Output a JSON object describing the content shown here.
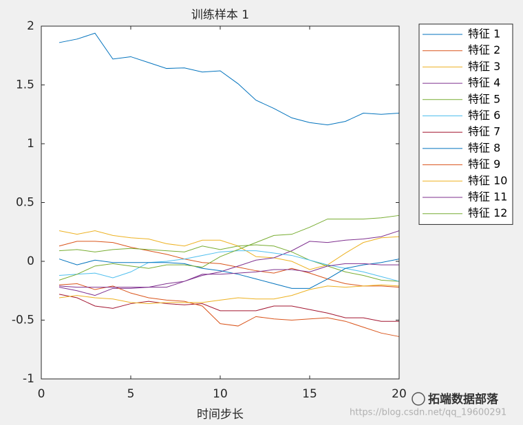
{
  "chart_data": {
    "type": "line",
    "title": "训练样本 1",
    "xlabel": "时间步长",
    "x": [
      1,
      2,
      3,
      4,
      5,
      6,
      7,
      8,
      9,
      10,
      11,
      12,
      13,
      14,
      15,
      16,
      17,
      18,
      19,
      20
    ],
    "xlim": [
      0,
      20
    ],
    "xticks": [
      0,
      5,
      10,
      15,
      20
    ],
    "ylim": [
      -1,
      2
    ],
    "yticks": [
      -1,
      -0.5,
      0,
      0.5,
      1,
      1.5,
      2
    ],
    "legend": "outside-top-right",
    "series": [
      {
        "name": "特征 1",
        "color": "#0072BD",
        "values": [
          1.86,
          1.89,
          1.94,
          1.72,
          1.74,
          1.69,
          1.64,
          1.645,
          1.61,
          1.62,
          1.51,
          1.37,
          1.3,
          1.22,
          1.18,
          1.16,
          1.19,
          1.26,
          1.25,
          1.26
        ]
      },
      {
        "name": "特征 2",
        "color": "#D95319",
        "values": [
          0.13,
          0.17,
          0.17,
          0.16,
          0.12,
          0.09,
          0.06,
          0.02,
          -0.01,
          -0.02,
          -0.05,
          -0.08,
          -0.1,
          -0.06,
          -0.1,
          -0.15,
          -0.19,
          -0.21,
          -0.21,
          -0.22
        ]
      },
      {
        "name": "特征 3",
        "color": "#EDB120",
        "values": [
          0.26,
          0.23,
          0.26,
          0.22,
          0.2,
          0.19,
          0.15,
          0.13,
          0.18,
          0.18,
          0.13,
          0.04,
          0.03,
          0.0,
          -0.07,
          -0.03,
          0.07,
          0.16,
          0.2,
          0.21
        ]
      },
      {
        "name": "特征 4",
        "color": "#7E2F8E",
        "values": [
          -0.22,
          -0.25,
          -0.29,
          -0.23,
          -0.23,
          -0.22,
          -0.19,
          -0.17,
          -0.12,
          -0.09,
          -0.04,
          0.01,
          0.03,
          0.09,
          0.17,
          0.16,
          0.18,
          0.19,
          0.21,
          0.26
        ]
      },
      {
        "name": "特征 5",
        "color": "#77AC30",
        "values": [
          0.09,
          0.1,
          0.08,
          0.1,
          0.11,
          0.1,
          0.09,
          0.08,
          0.13,
          0.1,
          0.13,
          0.14,
          0.13,
          0.08,
          0.01,
          -0.04,
          -0.09,
          -0.12,
          -0.16,
          -0.17
        ]
      },
      {
        "name": "特征 6",
        "color": "#4DBEEE",
        "values": [
          -0.12,
          -0.11,
          -0.1,
          -0.14,
          -0.09,
          -0.01,
          0.0,
          0.02,
          0.05,
          0.08,
          0.09,
          0.09,
          0.07,
          0.05,
          0.01,
          -0.03,
          -0.06,
          -0.09,
          -0.13,
          -0.17
        ]
      },
      {
        "name": "特征 7",
        "color": "#A2142F",
        "values": [
          -0.28,
          -0.31,
          -0.38,
          -0.4,
          -0.36,
          -0.34,
          -0.36,
          -0.37,
          -0.36,
          -0.42,
          -0.42,
          -0.42,
          -0.38,
          -0.38,
          -0.41,
          -0.44,
          -0.48,
          -0.48,
          -0.51,
          -0.51
        ]
      },
      {
        "name": "特征 8",
        "color": "#0072BD",
        "values": [
          0.02,
          -0.03,
          0.01,
          -0.01,
          -0.01,
          -0.01,
          -0.01,
          -0.02,
          -0.06,
          -0.08,
          -0.11,
          -0.15,
          -0.19,
          -0.23,
          -0.23,
          -0.15,
          -0.06,
          -0.03,
          -0.01,
          0.02
        ]
      },
      {
        "name": "特征 9",
        "color": "#D95319",
        "values": [
          -0.2,
          -0.19,
          -0.24,
          -0.21,
          -0.27,
          -0.31,
          -0.33,
          -0.34,
          -0.38,
          -0.53,
          -0.55,
          -0.47,
          -0.49,
          -0.5,
          -0.49,
          -0.48,
          -0.51,
          -0.56,
          -0.61,
          -0.64
        ]
      },
      {
        "name": "特征 10",
        "color": "#EDB120",
        "values": [
          -0.31,
          -0.29,
          -0.31,
          -0.32,
          -0.35,
          -0.36,
          -0.35,
          -0.35,
          -0.35,
          -0.33,
          -0.31,
          -0.32,
          -0.32,
          -0.29,
          -0.24,
          -0.21,
          -0.22,
          -0.21,
          -0.2,
          -0.21
        ]
      },
      {
        "name": "特征 11",
        "color": "#7E2F8E",
        "values": [
          -0.21,
          -0.22,
          -0.22,
          -0.22,
          -0.22,
          -0.22,
          -0.22,
          -0.17,
          -0.11,
          -0.11,
          -0.1,
          -0.09,
          -0.07,
          -0.07,
          -0.09,
          -0.04,
          -0.02,
          -0.02,
          -0.03,
          -0.03
        ]
      },
      {
        "name": "特征 12",
        "color": "#77AC30",
        "values": [
          -0.16,
          -0.11,
          -0.04,
          -0.02,
          -0.04,
          -0.06,
          -0.03,
          -0.03,
          -0.05,
          0.04,
          0.1,
          0.16,
          0.22,
          0.23,
          0.29,
          0.36,
          0.36,
          0.36,
          0.37,
          0.39
        ]
      }
    ]
  },
  "watermark": {
    "brand": "拓端数据部落",
    "url": "https://blog.csdn.net/qq_19600291"
  }
}
